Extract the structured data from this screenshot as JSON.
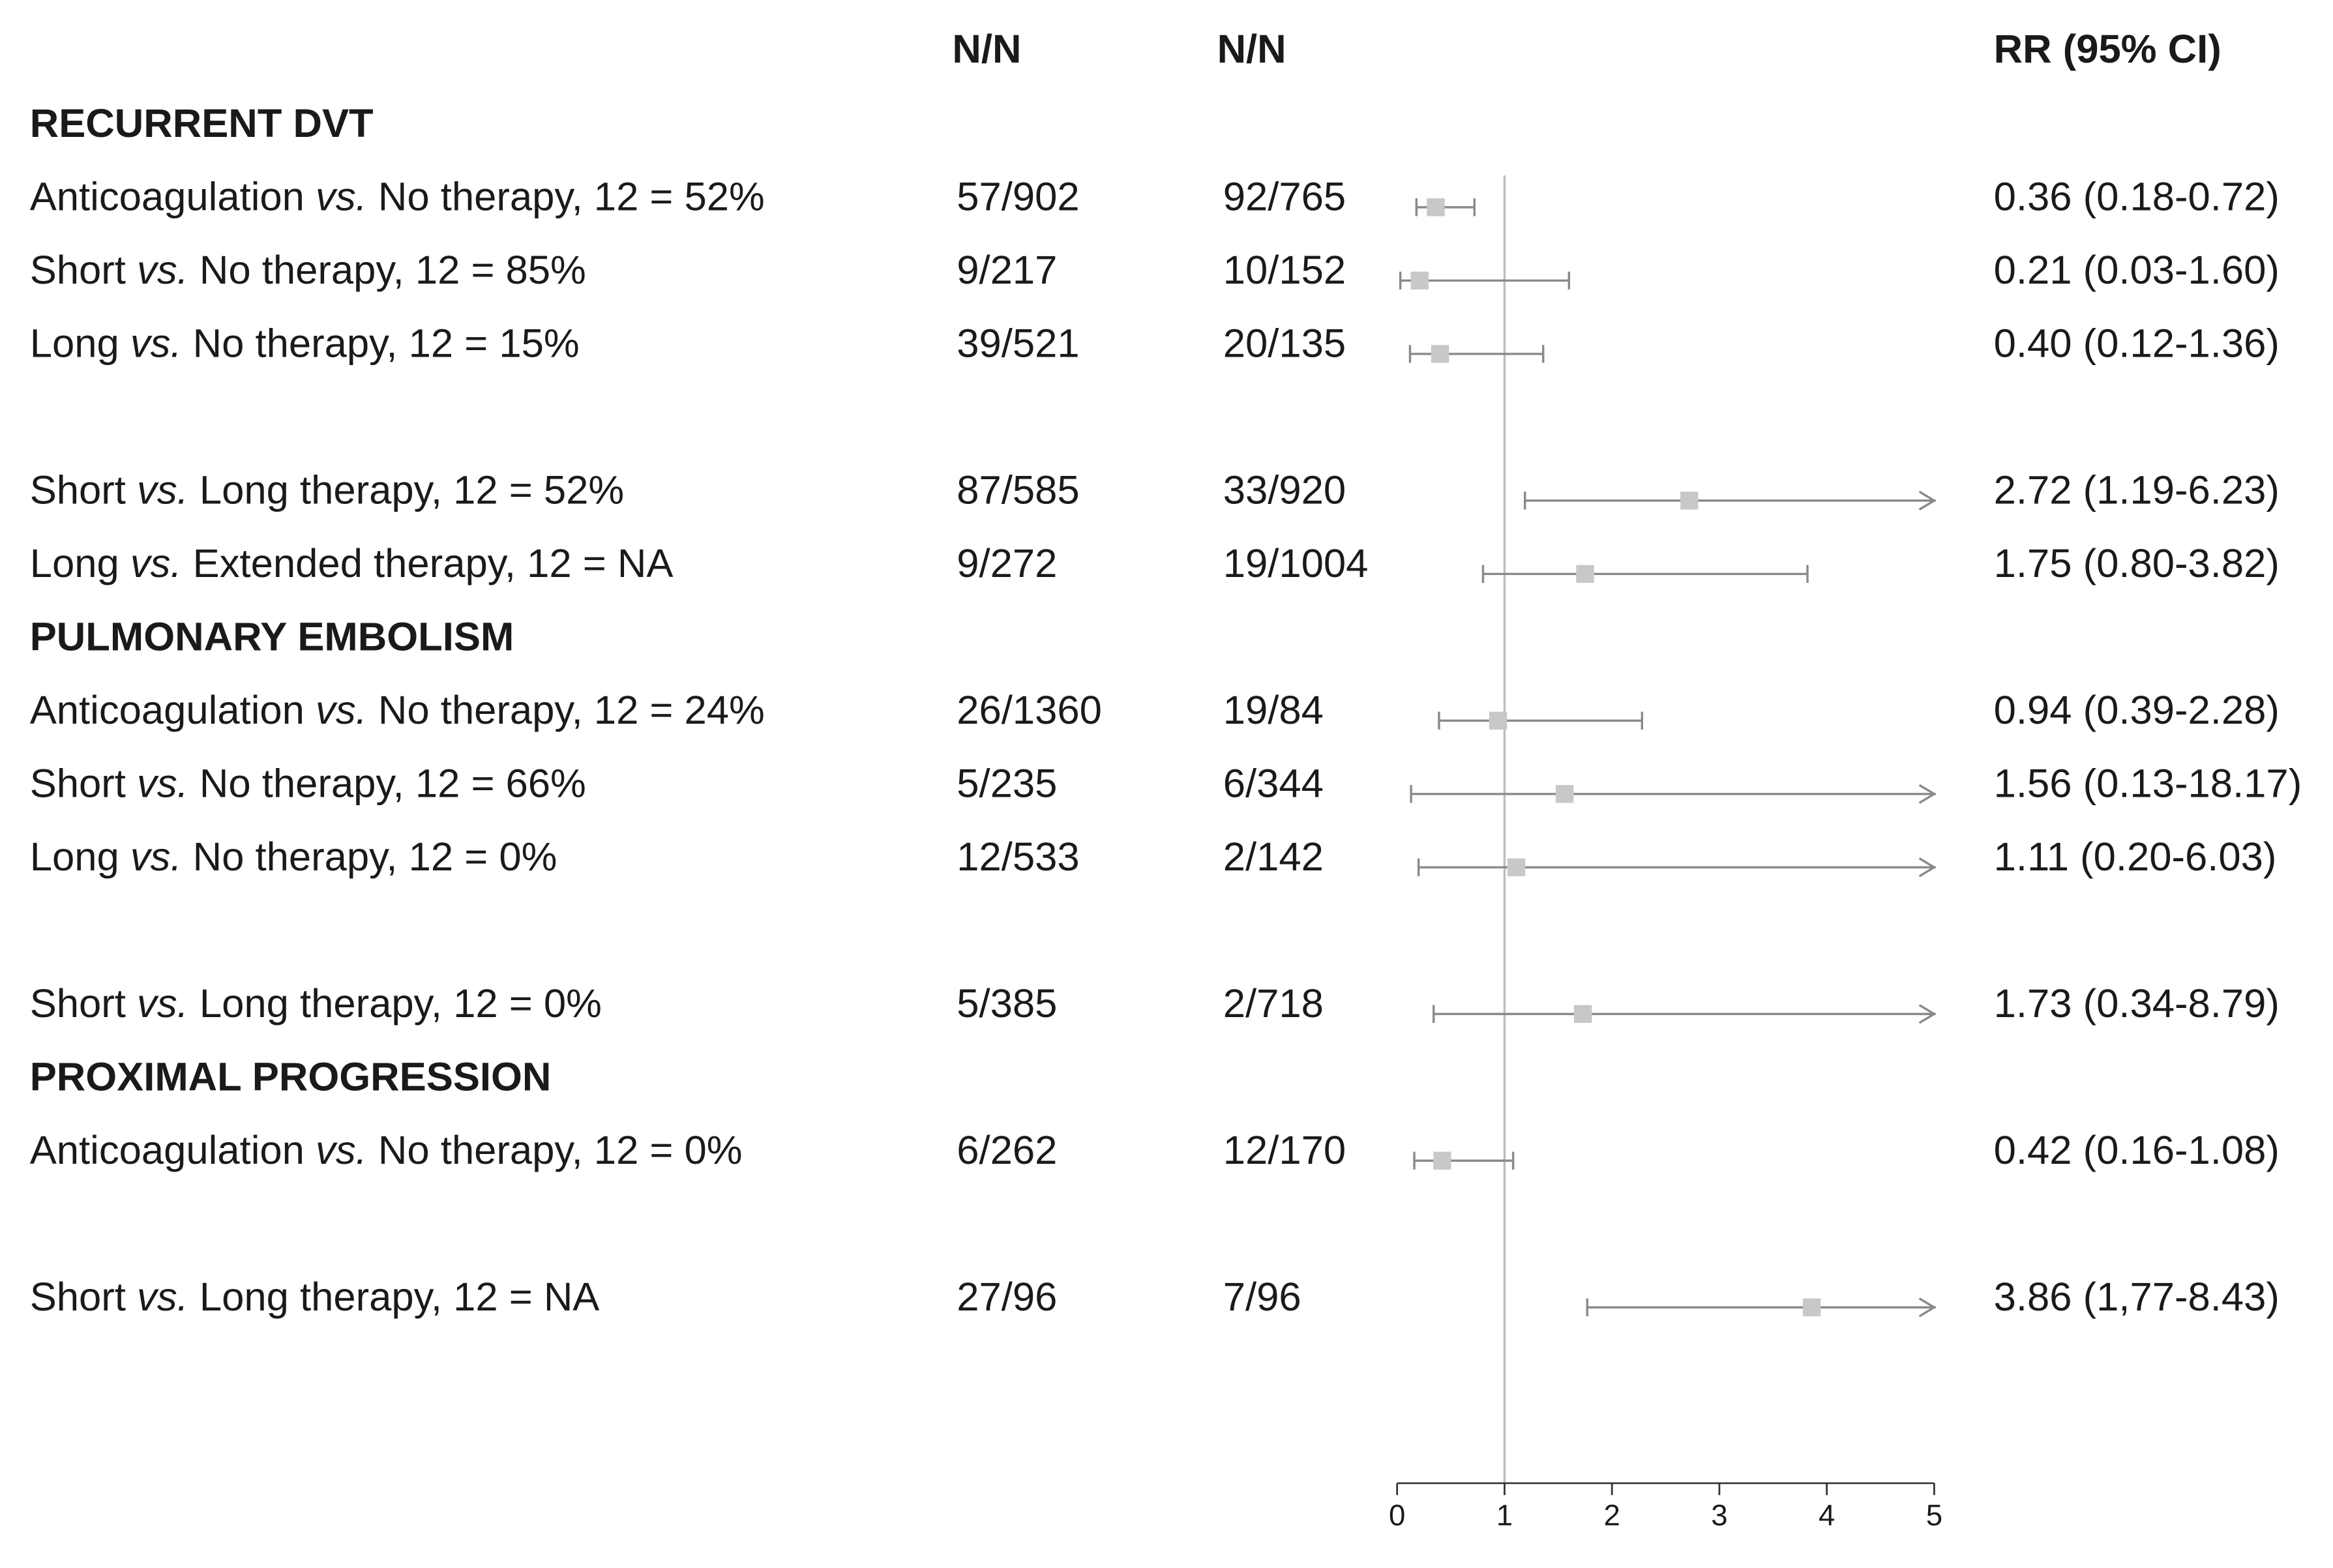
{
  "chart_data": {
    "type": "forest",
    "column_headers": {
      "n1": "N/N",
      "n2": "N/N",
      "rr": "RR (95% CI)"
    },
    "xlim": [
      0,
      5
    ],
    "xticks": [
      0,
      1,
      2,
      3,
      4,
      5
    ],
    "reference_line": 1,
    "marker_color": "#c8c8c8",
    "whisker_color": "#8a8a8a",
    "groups": [
      {
        "title": "RECURRENT DVT",
        "blocks": [
          [
            {
              "label": "Anticoagulation vs. No therapy, 12 = 52%",
              "n1": "57/902",
              "n2": "92/765",
              "rr": 0.36,
              "lo": 0.18,
              "hi": 0.72,
              "rr_label": "0.36 (0.18-0.72)"
            },
            {
              "label": "Short vs. No therapy, 12 = 85%",
              "n1": "9/217",
              "n2": "10/152",
              "rr": 0.21,
              "lo": 0.03,
              "hi": 1.6,
              "rr_label": "0.21 (0.03-1.60)"
            },
            {
              "label": "Long vs. No therapy, 12 = 15%",
              "n1": "39/521",
              "n2": "20/135",
              "rr": 0.4,
              "lo": 0.12,
              "hi": 1.36,
              "rr_label": "0.40 (0.12-1.36)"
            }
          ],
          [
            {
              "label": "Short vs. Long therapy, 12 = 52%",
              "n1": "87/585",
              "n2": "33/920",
              "rr": 2.72,
              "lo": 1.19,
              "hi": 6.23,
              "rr_label": "2.72 (1.19-6.23)"
            },
            {
              "label": "Long vs. Extended therapy, 12 = NA",
              "n1": "9/272",
              "n2": "19/1004",
              "rr": 1.75,
              "lo": 0.8,
              "hi": 3.82,
              "rr_label": "1.75 (0.80-3.82)"
            }
          ]
        ]
      },
      {
        "title": "PULMONARY EMBOLISM",
        "blocks": [
          [
            {
              "label": "Anticoagulation vs. No therapy, 12 = 24%",
              "n1": "26/1360",
              "n2": "19/84",
              "rr": 0.94,
              "lo": 0.39,
              "hi": 2.28,
              "rr_label": "0.94 (0.39-2.28)"
            },
            {
              "label": "Short vs. No therapy, 12 = 66%",
              "n1": "5/235",
              "n2": "6/344",
              "rr": 1.56,
              "lo": 0.13,
              "hi": 18.17,
              "rr_label": "1.56 (0.13-18.17)"
            },
            {
              "label": "Long vs. No therapy, 12 = 0%",
              "n1": "12/533",
              "n2": "2/142",
              "rr": 1.11,
              "lo": 0.2,
              "hi": 6.03,
              "rr_label": "1.11 (0.20-6.03)"
            }
          ],
          [
            {
              "label": "Short vs. Long therapy, 12 = 0%",
              "n1": "5/385",
              "n2": "2/718",
              "rr": 1.73,
              "lo": 0.34,
              "hi": 8.79,
              "rr_label": "1.73 (0.34-8.79)"
            }
          ]
        ]
      },
      {
        "title": "PROXIMAL PROGRESSION",
        "blocks": [
          [
            {
              "label": "Anticoagulation vs. No therapy, 12 = 0%",
              "n1": "6/262",
              "n2": "12/170",
              "rr": 0.42,
              "lo": 0.16,
              "hi": 1.08,
              "rr_label": "0.42 (0.16-1.08)"
            }
          ],
          [
            {
              "label": "Short vs. Long therapy, 12 = NA",
              "n1": "27/96",
              "n2": "7/96",
              "rr": 3.86,
              "lo": 1.77,
              "hi": 8.43,
              "rr_label": "3.86 (1,77-8.43)"
            }
          ]
        ]
      }
    ]
  }
}
